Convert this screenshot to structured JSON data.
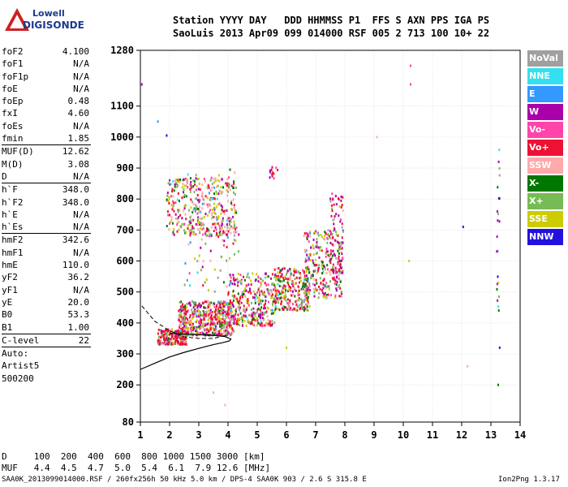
{
  "logo": {
    "line1": "Lowell",
    "line2": "DIGISONDE"
  },
  "header": {
    "line1": "Station YYYY DAY   DDD HHMMSS P1  FFS S AXN PPS IGA PS",
    "line2": "SaoLuis 2013 Apr09 099 014000 RSF 005 2 713 100 10+ 22"
  },
  "params": [
    {
      "name": "foF2",
      "value": "4.100"
    },
    {
      "name": "foF1",
      "value": "N/A"
    },
    {
      "name": "foF1p",
      "value": "N/A"
    },
    {
      "name": "foE",
      "value": "N/A"
    },
    {
      "name": "foEp",
      "value": "0.48"
    },
    {
      "name": "fxI",
      "value": "4.60"
    },
    {
      "name": "foEs",
      "value": "N/A"
    },
    {
      "name": "fmin",
      "value": "1.85"
    },
    {
      "sep": true
    },
    {
      "name": "MUF(D)",
      "value": "12.62"
    },
    {
      "name": "M(D)",
      "value": "3.08"
    },
    {
      "name": "D",
      "value": "N/A"
    },
    {
      "sep": true
    },
    {
      "name": "h`F",
      "value": "348.0"
    },
    {
      "name": "h`F2",
      "value": "348.0"
    },
    {
      "name": "h`E",
      "value": "N/A"
    },
    {
      "name": "h`Es",
      "value": "N/A"
    },
    {
      "sep": true
    },
    {
      "name": "hmF2",
      "value": "342.6"
    },
    {
      "name": "hmF1",
      "value": "N/A"
    },
    {
      "name": "hmE",
      "value": "110.0"
    },
    {
      "name": "yF2",
      "value": "36.2"
    },
    {
      "name": "yF1",
      "value": "N/A"
    },
    {
      "name": "yE",
      "value": "20.0"
    },
    {
      "name": "B0",
      "value": "53.3"
    },
    {
      "name": "B1",
      "value": "1.00"
    },
    {
      "sep": true
    },
    {
      "name": "C-level",
      "value": "22"
    },
    {
      "sep": true
    },
    {
      "name": "Auto:",
      "value": ""
    },
    {
      "name": "Artist5",
      "value": ""
    },
    {
      "name": "500200",
      "value": ""
    }
  ],
  "legend": [
    {
      "label": "NoVal",
      "color": "#a0a0a0"
    },
    {
      "label": "NNE",
      "color": "#33e0f0"
    },
    {
      "label": "E",
      "color": "#3399ff"
    },
    {
      "label": "W",
      "color": "#aa00aa"
    },
    {
      "label": "Vo-",
      "color": "#ff44aa"
    },
    {
      "label": "Vo+",
      "color": "#ee1133"
    },
    {
      "label": "SSW",
      "color": "#ffaaaa"
    },
    {
      "label": "X-",
      "color": "#007700"
    },
    {
      "label": "X+",
      "color": "#77bb55"
    },
    {
      "label": "SSE",
      "color": "#cccc00"
    },
    {
      "label": "NNW",
      "color": "#2211dd"
    }
  ],
  "footer": {
    "d_row": "D     100  200  400  600  800 1000 1500 3000 [km]",
    "muf_row": "MUF   4.4  4.5  4.7  5.0  5.4  6.1  7.9 12.6 [MHz]",
    "file_line": "SAA0K_2013099014000.RSF / 260fx256h 50 kHz 5.0 km / DPS-4 SAA0K 903 / 2.6 S 315.8 E",
    "version": "Ion2Png 1.3.17"
  },
  "chart_data": {
    "type": "scatter",
    "title": "",
    "xlabel": "",
    "ylabel": "",
    "xlim": [
      1,
      14
    ],
    "ylim": [
      80,
      1280
    ],
    "x_ticks": [
      1,
      2,
      3,
      4,
      5,
      6,
      7,
      8,
      9,
      10,
      11,
      12,
      13,
      14
    ],
    "y_ticks": [
      80,
      200,
      300,
      400,
      500,
      600,
      700,
      800,
      900,
      1000,
      1100,
      1280
    ],
    "grid": true,
    "clusters": [
      {
        "x": [
          1.6,
          2.6
        ],
        "y": [
          330,
          380
        ],
        "n": 220,
        "weights": [
          0.08,
          0.03,
          0.02,
          0.05,
          0.05,
          0.55,
          0.05,
          0.04,
          0.08,
          0.05,
          0.0
        ]
      },
      {
        "x": [
          2.3,
          4.2
        ],
        "y": [
          360,
          470
        ],
        "n": 520,
        "weights": [
          0.05,
          0.02,
          0.01,
          0.12,
          0.1,
          0.3,
          0.08,
          0.08,
          0.1,
          0.14,
          0.0
        ]
      },
      {
        "x": [
          1.9,
          4.3
        ],
        "y": [
          680,
          870
        ],
        "n": 380,
        "weights": [
          0.04,
          0.02,
          0.01,
          0.1,
          0.12,
          0.15,
          0.2,
          0.1,
          0.12,
          0.14,
          0.0
        ]
      },
      {
        "x": [
          4.0,
          5.6
        ],
        "y": [
          390,
          560
        ],
        "n": 330,
        "weights": [
          0.05,
          0.02,
          0.02,
          0.12,
          0.1,
          0.26,
          0.08,
          0.1,
          0.12,
          0.13,
          0.0
        ]
      },
      {
        "x": [
          5.6,
          6.8
        ],
        "y": [
          440,
          580
        ],
        "n": 260,
        "weights": [
          0.05,
          0.02,
          0.02,
          0.12,
          0.1,
          0.26,
          0.08,
          0.1,
          0.12,
          0.13,
          0.0
        ]
      },
      {
        "x": [
          6.6,
          7.9
        ],
        "y": [
          480,
          700
        ],
        "n": 260,
        "weights": [
          0.05,
          0.02,
          0.02,
          0.14,
          0.1,
          0.26,
          0.08,
          0.1,
          0.12,
          0.11,
          0.0
        ]
      },
      {
        "x": [
          7.5,
          7.95
        ],
        "y": [
          560,
          820
        ],
        "n": 90,
        "weights": [
          0.05,
          0.0,
          0.0,
          0.3,
          0.2,
          0.25,
          0.05,
          0.05,
          0.05,
          0.05,
          0.0
        ]
      },
      {
        "x": [
          2.4,
          4.4
        ],
        "y": [
          500,
          900
        ],
        "n": 90,
        "weights": [
          0.1,
          0.05,
          0.05,
          0.1,
          0.1,
          0.1,
          0.15,
          0.1,
          0.15,
          0.1,
          0.0
        ]
      },
      {
        "x": [
          5.4,
          5.7
        ],
        "y": [
          860,
          910
        ],
        "n": 12,
        "weights": [
          0,
          0,
          0,
          0.3,
          0.4,
          0.3,
          0,
          0,
          0,
          0,
          0
        ]
      },
      {
        "x": [
          13.2,
          13.3
        ],
        "y": [
          440,
          1200
        ],
        "n": 22,
        "weights": [
          0.05,
          0.1,
          0.1,
          0.15,
          0.05,
          0.05,
          0,
          0.2,
          0.1,
          0.1,
          0.1
        ]
      }
    ],
    "points": [
      {
        "x": 1.05,
        "y": 1170,
        "c": 3
      },
      {
        "x": 1.6,
        "y": 1050,
        "c": 2
      },
      {
        "x": 1.9,
        "y": 1005,
        "c": 10
      },
      {
        "x": 10.25,
        "y": 1230,
        "c": 4
      },
      {
        "x": 10.25,
        "y": 1170,
        "c": 4
      },
      {
        "x": 12.05,
        "y": 710,
        "c": 10
      },
      {
        "x": 12.2,
        "y": 260,
        "c": 6
      },
      {
        "x": 13.25,
        "y": 200,
        "c": 7
      },
      {
        "x": 13.3,
        "y": 320,
        "c": 10
      },
      {
        "x": 3.9,
        "y": 135,
        "c": 6
      },
      {
        "x": 3.5,
        "y": 175,
        "c": 6
      },
      {
        "x": 6.0,
        "y": 320,
        "c": 9
      },
      {
        "x": 9.1,
        "y": 1000,
        "c": 6
      },
      {
        "x": 10.2,
        "y": 600,
        "c": 9
      }
    ],
    "profile_curve": {
      "x": [
        1.0,
        1.5,
        2.0,
        2.5,
        3.0,
        3.5,
        3.8,
        4.05,
        4.1,
        3.9,
        3.5,
        3.0,
        2.5,
        2.0
      ],
      "y": [
        250,
        270,
        290,
        305,
        318,
        330,
        336,
        342,
        348,
        356,
        360,
        362,
        364,
        366
      ]
    },
    "trace_curve": {
      "x": [
        1.05,
        1.5,
        2.0,
        2.5,
        3.0,
        3.5,
        4.0
      ],
      "y": [
        455,
        405,
        375,
        355,
        350,
        350,
        362
      ]
    }
  }
}
